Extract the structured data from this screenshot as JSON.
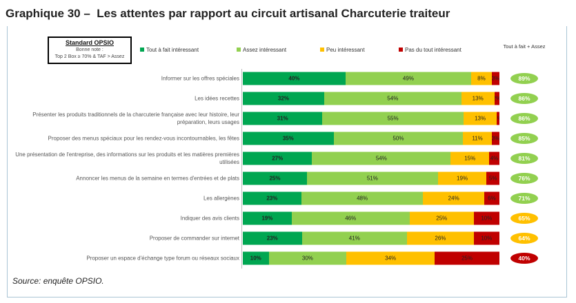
{
  "title": "Graphique 30 –  Les attentes par rapport au circuit artisanal Charcuterie traiteur",
  "standard_box": {
    "heading": "Standard OPSIO",
    "line1": "Bonne note :",
    "line2": "Top 2 Box ≥ 70% & TAF > Assez"
  },
  "source": "Source: enquête OPSIO.",
  "chart_data": {
    "type": "bar",
    "orientation": "horizontal-stacked-100",
    "legend_position": "top",
    "series": [
      {
        "name": "Tout à fait intéressant",
        "color": "#00a651",
        "labels": [
          "40%",
          "32%",
          "31%",
          "35%",
          "27%",
          "25%",
          "23%",
          "19%",
          "23%",
          "10%"
        ],
        "values": [
          40,
          32,
          31,
          35,
          27,
          25,
          23,
          19,
          23,
          10
        ]
      },
      {
        "name": "Assez intéressant",
        "color": "#92d050",
        "labels": [
          "49%",
          "54%",
          "55%",
          "50%",
          "54%",
          "51%",
          "48%",
          "46%",
          "41%",
          "30%"
        ],
        "values": [
          49,
          54,
          55,
          50,
          54,
          51,
          48,
          46,
          41,
          30
        ]
      },
      {
        "name": "Peu intéressant",
        "color": "#ffc000",
        "labels": [
          "8%",
          "13%",
          "13%",
          "11%",
          "15%",
          "19%",
          "24%",
          "25%",
          "26%",
          "34%"
        ],
        "values": [
          8,
          13,
          13,
          11,
          15,
          19,
          24,
          25,
          26,
          34
        ]
      },
      {
        "name": "Pas du tout intéressant",
        "color": "#c00000",
        "labels": [
          "3%",
          "2%",
          "1%",
          "3%",
          "4%",
          "5%",
          "6%",
          "10%",
          "10%",
          "25%"
        ],
        "values": [
          3,
          2,
          1,
          3,
          4,
          5,
          6,
          10,
          10,
          25
        ]
      }
    ],
    "categories": [
      "Informer sur les offres spéciales",
      "Les idées recettes",
      "Présenter les produits traditionnels de la charcuterie française avec leur histoire, leur préparation, leurs usages",
      "Proposer des menus spéciaux pour les rendez-vous incontournables, les fêtes",
      "Une présentation de l'entreprise, des informations sur les produits et les matières premières utilisées",
      "Annoncer les menus de la semaine en termes d'entrées et de plats",
      "Les allergènes",
      "Indiquer des avis clients",
      "Proposer de commander sur internet",
      "Proposer un espace d'échange type forum ou réseaux sociaux"
    ],
    "top2_header": "Tout à fait + Assez",
    "top2": [
      {
        "label": "89%",
        "color": "#92d050"
      },
      {
        "label": "86%",
        "color": "#92d050"
      },
      {
        "label": "86%",
        "color": "#92d050"
      },
      {
        "label": "85%",
        "color": "#92d050"
      },
      {
        "label": "81%",
        "color": "#92d050"
      },
      {
        "label": "76%",
        "color": "#92d050"
      },
      {
        "label": "71%",
        "color": "#92d050"
      },
      {
        "label": "65%",
        "color": "#ffc000"
      },
      {
        "label": "64%",
        "color": "#ffc000"
      },
      {
        "label": "40%",
        "color": "#c00000"
      }
    ]
  }
}
